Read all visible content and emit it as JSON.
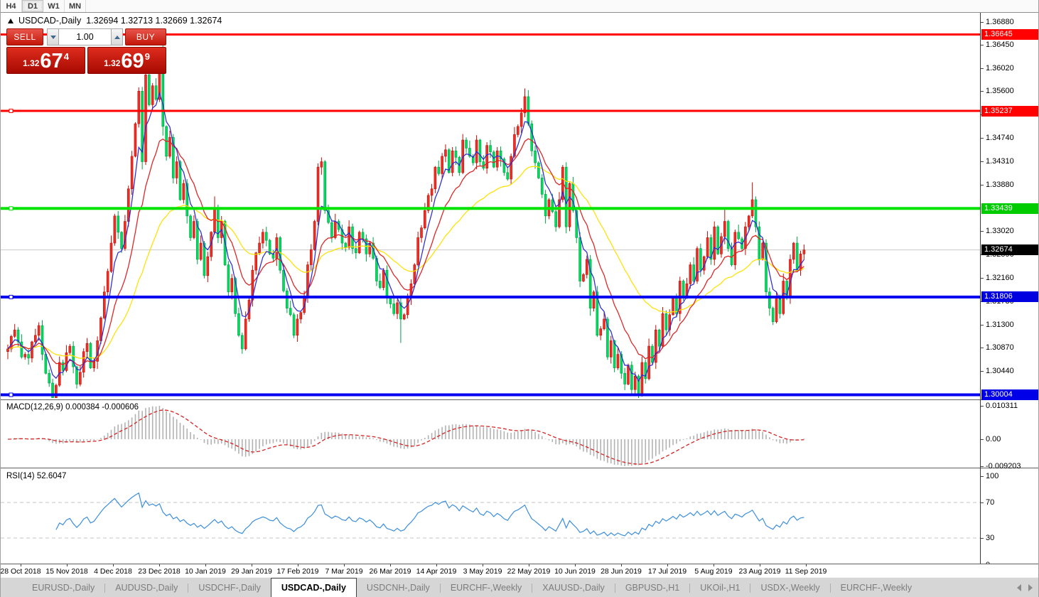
{
  "toolbar": {
    "timeframes": [
      {
        "label": "H4",
        "active": false
      },
      {
        "label": "D1",
        "active": true
      },
      {
        "label": "W1",
        "active": false
      },
      {
        "label": "MN",
        "active": false
      }
    ]
  },
  "chart": {
    "symbol_label": "USDCAD-,Daily",
    "ohlc_values": "1.32694 1.32713 1.32669 1.32674"
  },
  "trade_panel": {
    "sell_label": "SELL",
    "buy_label": "BUY",
    "volume": "1.00",
    "sell_price": {
      "small": "1.32",
      "big": "67",
      "sup": "4"
    },
    "buy_price": {
      "small": "1.32",
      "big": "69",
      "sup": "9"
    }
  },
  "price_axis": {
    "ticks": [
      "1.36880",
      "1.36450",
      "1.36020",
      "1.35600",
      "1.35170",
      "1.34740",
      "1.34310",
      "1.33880",
      "1.33020",
      "1.32590",
      "1.32160",
      "1.31730",
      "1.31300",
      "1.30870",
      "1.30440"
    ],
    "badges": [
      {
        "label": "1.36645",
        "value": 1.36645,
        "color": "#fe0100"
      },
      {
        "label": "1.35237",
        "value": 1.35237,
        "color": "#fe0100"
      },
      {
        "label": "1.33439",
        "value": 1.33439,
        "color": "#00cc00"
      },
      {
        "label": "1.31806",
        "value": 1.31806,
        "color": "#0000e0"
      },
      {
        "label": "1.30004",
        "value": 1.30004,
        "color": "#0000e8"
      },
      {
        "label": "1.32674",
        "value": 1.32674,
        "color": "#000000"
      }
    ]
  },
  "macd_panel": {
    "label": "MACD(12,26,9)",
    "values": "0.000384 -0.000606",
    "axis": [
      "0.010311",
      "0.00",
      "-0.009203"
    ]
  },
  "rsi_panel": {
    "label": "RSI(14)",
    "value": "52.6047",
    "axis": [
      "100",
      "70",
      "30",
      "0"
    ],
    "levels": [
      70,
      30
    ]
  },
  "tabs": {
    "items": [
      {
        "label": "EURUSD-,Daily",
        "active": false
      },
      {
        "label": "AUDUSD-,Daily",
        "active": false
      },
      {
        "label": "USDCHF-,Daily",
        "active": false
      },
      {
        "label": "USDCAD-,Daily",
        "active": true
      },
      {
        "label": "USDCNH-,Daily",
        "active": false
      },
      {
        "label": "EURCHF-,Weekly",
        "active": false
      },
      {
        "label": "XAUUSD-,Daily",
        "active": false
      },
      {
        "label": "GBPUSD-,H1",
        "active": false
      },
      {
        "label": "UKOil-,H1",
        "active": false
      },
      {
        "label": "USDX-,Weekly",
        "active": false
      },
      {
        "label": "EURCHF-,Weekly",
        "active": false
      }
    ]
  },
  "chart_data": {
    "type": "candlestick",
    "symbol": "USDCAD",
    "timeframe": "Daily",
    "title": "USDCAD-,Daily",
    "y_axis": {
      "min": 1.2992,
      "max": 1.3704
    },
    "x_labels": [
      "28 Oct 2018",
      "15 Nov 2018",
      "4 Dec 2018",
      "23 Dec 2018",
      "10 Jan 2019",
      "29 Jan 2019",
      "17 Feb 2019",
      "7 Mar 2019",
      "26 Mar 2019",
      "14 Apr 2019",
      "3 May 2019",
      "22 May 2019",
      "10 Jun 2019",
      "28 Jun 2019",
      "17 Jul 2019",
      "5 Aug 2019",
      "23 Aug 2019",
      "11 Sep 2019"
    ],
    "hlines": [
      {
        "value": 1.36645,
        "color": "#fe0100",
        "thickness": 3
      },
      {
        "value": 1.35237,
        "color": "#fe0100",
        "thickness": 3
      },
      {
        "value": 1.33439,
        "color": "#00e400",
        "thickness": 4
      },
      {
        "value": 1.31806,
        "color": "#0100f0",
        "thickness": 4
      },
      {
        "value": 1.30004,
        "color": "#0100f0",
        "thickness": 4
      }
    ],
    "current_price": 1.32674,
    "closes": [
      1.3085,
      1.3108,
      1.312,
      1.3098,
      1.307,
      1.3075,
      1.3068,
      1.3098,
      1.311,
      1.3128,
      1.3075,
      1.304,
      1.3022,
      1.2995,
      1.3018,
      1.306,
      1.3045,
      1.3078,
      1.309,
      1.3052,
      1.302,
      1.3042,
      1.308,
      1.3095,
      1.305,
      1.3062,
      1.31,
      1.3142,
      1.319,
      1.3228,
      1.328,
      1.333,
      1.33,
      1.327,
      1.332,
      1.338,
      1.344,
      1.35,
      1.356,
      1.343,
      1.359,
      1.3535,
      1.357,
      1.3545,
      1.36,
      1.3495,
      1.344,
      1.3475,
      1.34,
      1.343,
      1.336,
      1.339,
      1.333,
      1.329,
      1.332,
      1.325,
      1.328,
      1.322,
      1.3255,
      1.33,
      1.3345,
      1.329,
      1.332,
      1.324,
      1.319,
      1.3215,
      1.315,
      1.311,
      1.3085,
      1.314,
      1.3175,
      1.323,
      1.3262,
      1.328,
      1.33,
      1.3285,
      1.326,
      1.3252,
      1.329,
      1.323,
      1.3192,
      1.316,
      1.3148,
      1.311,
      1.314,
      1.3152,
      1.318,
      1.324,
      1.3268,
      1.332,
      1.342,
      1.343,
      1.334,
      1.3318,
      1.329,
      1.332,
      1.3305,
      1.328,
      1.3272,
      1.331,
      1.327,
      1.3262,
      1.33,
      1.3288,
      1.326,
      1.328,
      1.3252,
      1.321,
      1.3198,
      1.323,
      1.318,
      1.3168,
      1.315,
      1.317,
      1.314,
      1.3148,
      1.318,
      1.3205,
      1.324,
      1.329,
      1.3308,
      1.334,
      1.3368,
      1.338,
      1.342,
      1.3408,
      1.344,
      1.3452,
      1.341,
      1.345,
      1.3438,
      1.341,
      1.347,
      1.3455,
      1.344,
      1.3428,
      1.347,
      1.343,
      1.3418,
      1.346,
      1.3448,
      1.342,
      1.345,
      1.3435,
      1.341,
      1.3398,
      1.344,
      1.348,
      1.3495,
      1.352,
      1.355,
      1.35,
      1.345,
      1.3428,
      1.34,
      1.337,
      1.333,
      1.336,
      1.3338,
      1.331,
      1.336,
      1.342,
      1.331,
      1.339,
      1.334,
      1.329,
      1.321,
      1.3222,
      1.325,
      1.316,
      1.319,
      1.311,
      1.3122,
      1.314,
      1.307,
      1.31,
      1.305,
      1.3075,
      1.304,
      1.302,
      1.3055,
      1.301,
      1.3035,
      1.3,
      1.306,
      1.303,
      1.309,
      1.306,
      1.312,
      1.309,
      1.315,
      1.312,
      1.3148,
      1.318,
      1.315,
      1.321,
      1.318,
      1.3205,
      1.324,
      1.321,
      1.327,
      1.323,
      1.3255,
      1.329,
      1.325,
      1.331,
      1.326,
      1.3292,
      1.332,
      1.327,
      1.324,
      1.33,
      1.3288,
      1.327,
      1.331,
      1.333,
      1.336,
      1.331,
      1.325,
      1.328,
      1.319,
      1.316,
      1.3135,
      1.318,
      1.315,
      1.321,
      1.318,
      1.325,
      1.328,
      1.323,
      1.326,
      1.32674
    ],
    "first_open": 1.308,
    "wick_pattern": [
      8,
      3,
      11,
      5,
      14,
      4,
      9,
      2,
      12,
      6,
      10,
      3,
      7
    ],
    "wick_overrides": {
      "13": {
        "l": 1.299
      },
      "45": {
        "h": 1.36645,
        "l": 1.3478
      },
      "60": {
        "h": 1.3366
      },
      "114": {
        "l": 1.3096
      },
      "150": {
        "h": 1.3565
      },
      "182": {
        "l": 1.2999
      },
      "208": {
        "h": 1.3344
      },
      "216": {
        "h": 1.3392
      }
    },
    "moving_averages": [
      {
        "name": "fast",
        "period": 5,
        "color": "#2b2bd4"
      },
      {
        "name": "medium",
        "period": 13,
        "color": "#e02020"
      },
      {
        "name": "slow",
        "period": 34,
        "color": "#ffe100"
      }
    ],
    "colors": {
      "up_candle": "#ef2f26",
      "up_candle_border": "#c00f06",
      "down_candle": "#00dc5e",
      "down_candle_border": "#00a246",
      "current_price_line": "#c9c9c9",
      "macd_histogram": "#b2b2b2",
      "macd_signal": "#d42424",
      "rsi_line": "#3b8ede",
      "rsi_level_dash": "#c4c4c4"
    }
  }
}
